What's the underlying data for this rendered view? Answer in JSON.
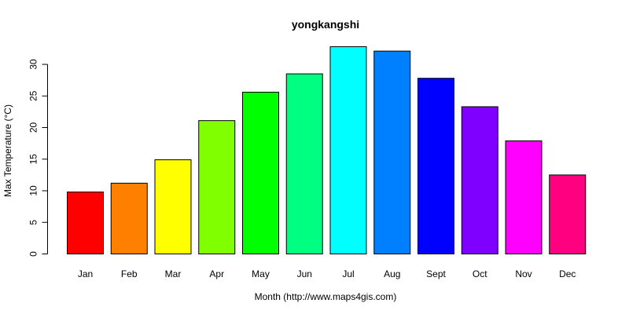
{
  "chart_data": {
    "type": "bar",
    "title": "yongkangshi",
    "xlabel": "Month (http://www.maps4gis.com)",
    "ylabel": "Max Temperature (°C)",
    "categories": [
      "Jan",
      "Feb",
      "Mar",
      "Apr",
      "May",
      "Jun",
      "Jul",
      "Aug",
      "Sept",
      "Oct",
      "Nov",
      "Dec"
    ],
    "values": [
      9.8,
      11.2,
      14.9,
      21.1,
      25.6,
      28.5,
      32.8,
      32.1,
      27.8,
      23.3,
      17.9,
      12.5
    ],
    "colors": [
      "#FF0000",
      "#FF8000",
      "#FFFF00",
      "#80FF00",
      "#00FF00",
      "#00FF80",
      "#00FFFF",
      "#0080FF",
      "#0000FF",
      "#8000FF",
      "#FF00FF",
      "#FF0080"
    ],
    "yticks": [
      0,
      5,
      10,
      15,
      20,
      25,
      30
    ],
    "ylim": [
      0,
      33
    ],
    "grid": false,
    "legend": false
  }
}
